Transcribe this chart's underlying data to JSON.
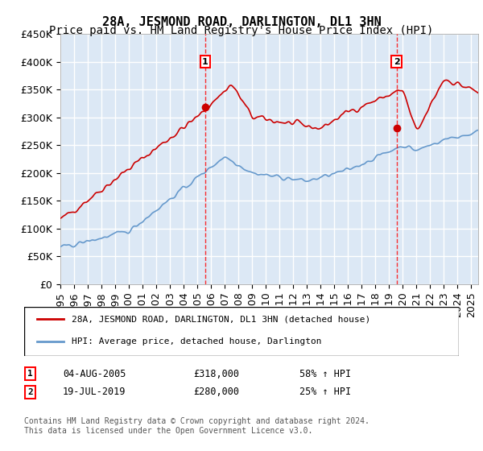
{
  "title": "28A, JESMOND ROAD, DARLINGTON, DL1 3HN",
  "subtitle": "Price paid vs. HM Land Registry's House Price Index (HPI)",
  "ylabel_ticks": [
    "£0",
    "£50K",
    "£100K",
    "£150K",
    "£200K",
    "£250K",
    "£300K",
    "£350K",
    "£400K",
    "£450K"
  ],
  "ylim": [
    0,
    450000
  ],
  "xlim_start": 1995.0,
  "xlim_end": 2025.5,
  "marker1_x": 2005.58,
  "marker1_y": 318000,
  "marker2_x": 2019.54,
  "marker2_y": 280000,
  "line1_color": "#cc0000",
  "line2_color": "#6699cc",
  "background_color": "#e8f0f8",
  "grid_color": "#ffffff",
  "annotation1_label": "1",
  "annotation2_label": "2",
  "legend_line1": "28A, JESMOND ROAD, DARLINGTON, DL1 3HN (detached house)",
  "legend_line2": "HPI: Average price, detached house, Darlington",
  "table_row1": [
    "1",
    "04-AUG-2005",
    "£318,000",
    "58% ↑ HPI"
  ],
  "table_row2": [
    "2",
    "19-JUL-2019",
    "£280,000",
    "25% ↑ HPI"
  ],
  "footer": "Contains HM Land Registry data © Crown copyright and database right 2024.\nThis data is licensed under the Open Government Licence v3.0.",
  "title_fontsize": 11,
  "subtitle_fontsize": 10,
  "tick_fontsize": 9,
  "axis_bg": "#dce8f5"
}
